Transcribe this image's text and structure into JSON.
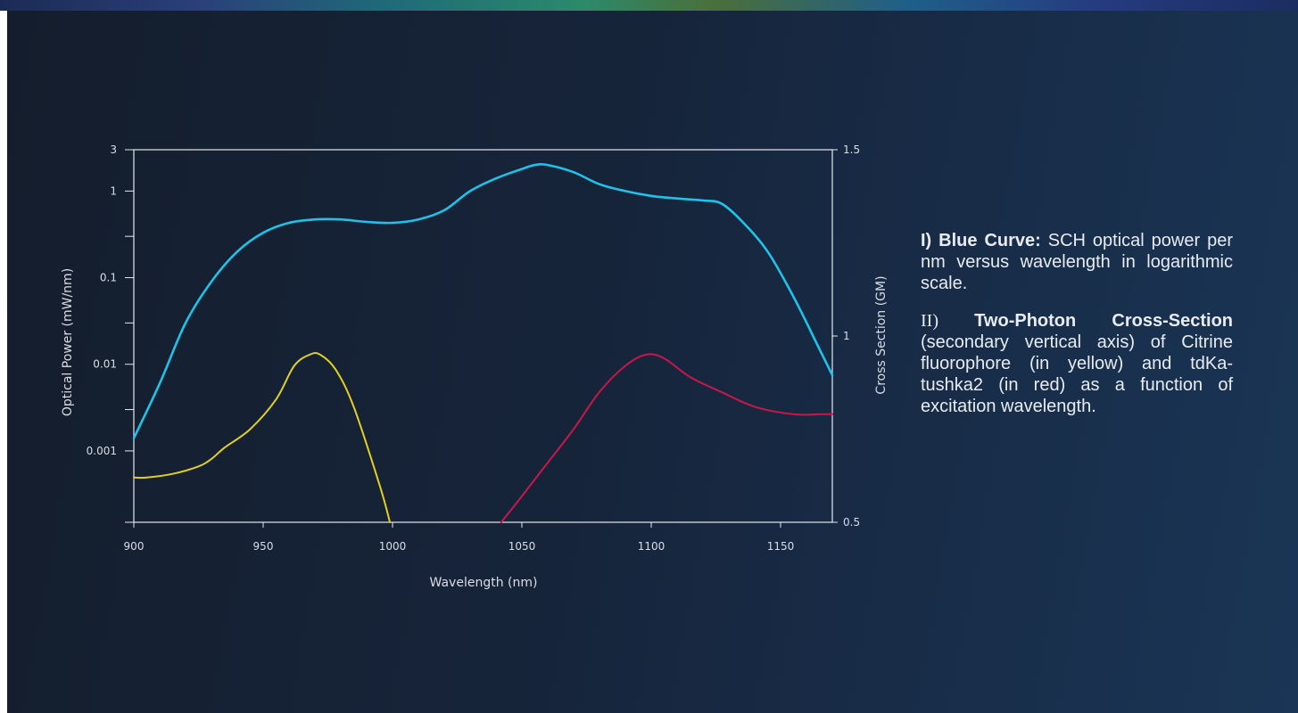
{
  "chart_data": {
    "type": "line",
    "xlabel": "Wavelength (nm)",
    "ylabel": "Optical Power (mW/nm)",
    "y2label": "Cross Section (GM)",
    "xlim": [
      900,
      1170
    ],
    "ylim": [
      0.00015,
      3
    ],
    "yscale": "log",
    "y2lim": [
      0.5,
      1.5
    ],
    "xticks": [
      "900",
      "950",
      "1000",
      "1050",
      "1100",
      "1150"
    ],
    "yticks": [
      "3",
      "1",
      "0.1",
      "0.01",
      "0.001"
    ],
    "y2ticks": [
      "1.5",
      "1",
      "0.5"
    ],
    "series": [
      {
        "color": "#1ec3ea",
        "axis": "left",
        "x": [
          900,
          910,
          920,
          930,
          940,
          950,
          960,
          970,
          980,
          990,
          1000,
          1010,
          1020,
          1030,
          1040,
          1050,
          1055,
          1060,
          1070,
          1080,
          1090,
          1100,
          1110,
          1120,
          1127,
          1135,
          1145,
          1155,
          1165,
          1170
        ],
        "y": [
          0.0014,
          0.006,
          0.03,
          0.09,
          0.2,
          0.33,
          0.43,
          0.47,
          0.47,
          0.44,
          0.43,
          0.47,
          0.6,
          1.0,
          1.4,
          1.8,
          2.0,
          2.0,
          1.65,
          1.2,
          1.0,
          0.88,
          0.82,
          0.78,
          0.72,
          0.45,
          0.2,
          0.06,
          0.015,
          0.0075
        ]
      },
      {
        "color": "#e2d020",
        "axis": "right",
        "x": [
          900,
          905,
          915,
          925,
          930,
          935,
          945,
          955,
          962,
          968,
          972,
          978,
          985,
          995,
          999
        ],
        "y": [
          0.62,
          0.62,
          0.63,
          0.65,
          0.67,
          0.7,
          0.75,
          0.83,
          0.92,
          0.95,
          0.95,
          0.91,
          0.81,
          0.6,
          0.5
        ]
      },
      {
        "color": "#c8174a",
        "axis": "right",
        "x": [
          1042,
          1050,
          1060,
          1070,
          1080,
          1090,
          1098,
          1105,
          1115,
          1127,
          1140,
          1155,
          1165,
          1170
        ],
        "y": [
          0.5,
          0.57,
          0.66,
          0.75,
          0.85,
          0.92,
          0.95,
          0.94,
          0.89,
          0.85,
          0.81,
          0.79,
          0.79,
          0.79
        ]
      }
    ]
  },
  "caption": {
    "p1_bold": "I) Blue Curve:",
    "p1_text": " SCH optical power per nm versus wavelength in logarithmic scale.",
    "p2_roman": "II)",
    "p2_bold": " Two-Photon Cross-Section",
    "p2_text": " (secondary vertical axis) of Citrine fluorophore (in yellow) and tdKa-tushka2 (in red) as a function of excitation wavelength."
  }
}
